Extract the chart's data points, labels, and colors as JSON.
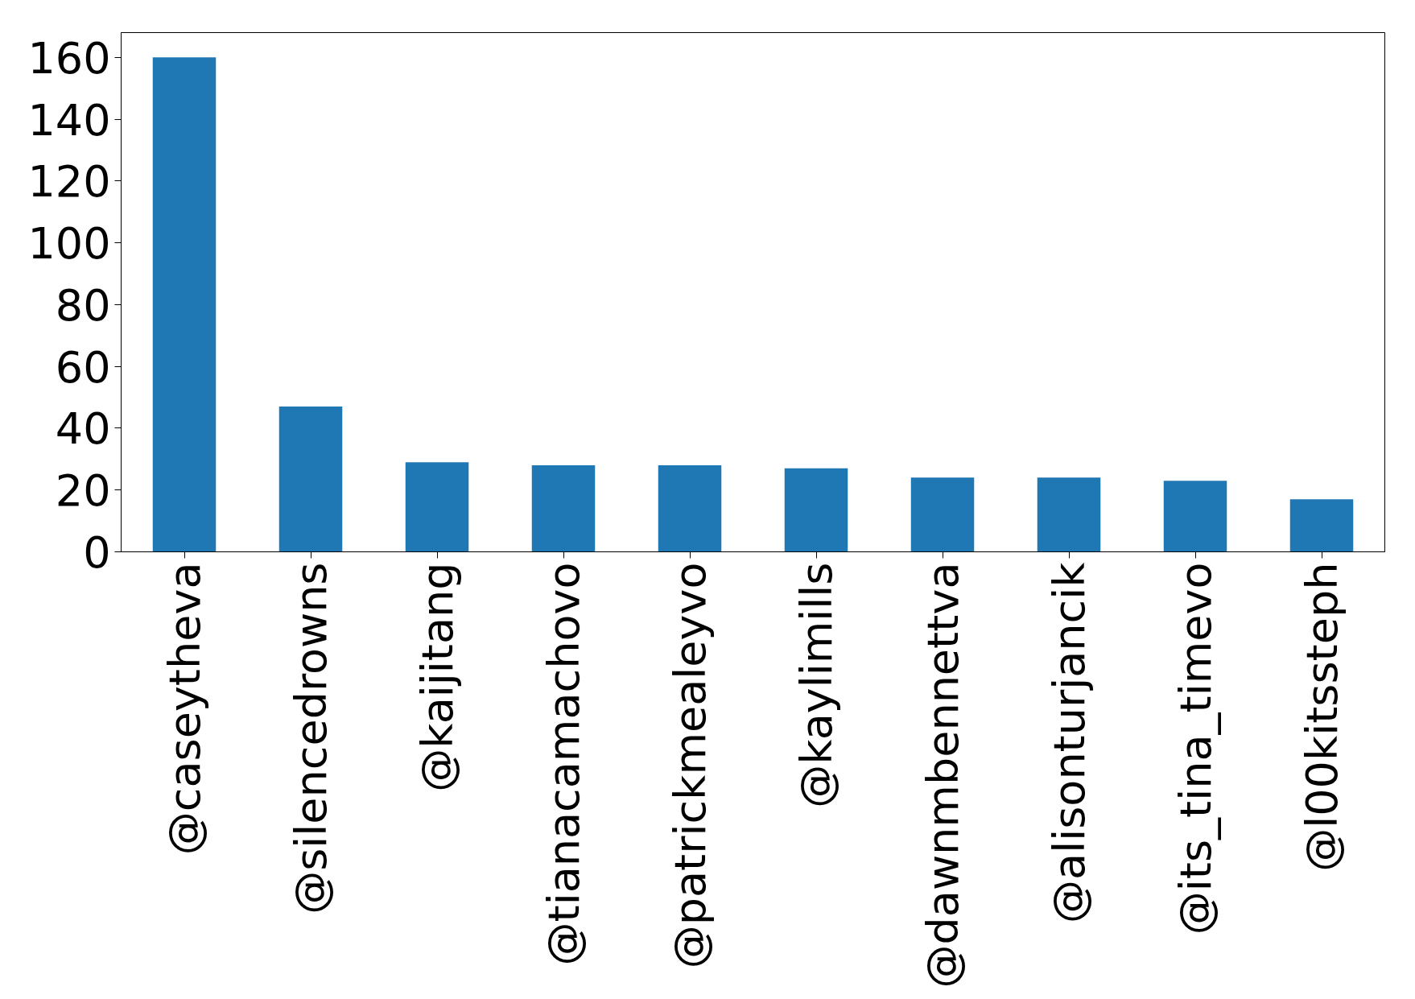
{
  "chart_data": {
    "type": "bar",
    "categories": [
      "@caseytheva",
      "@silencedrowns",
      "@kaijitang",
      "@tianacamachovo",
      "@patrickmealeyvo",
      "@kaylimills",
      "@dawnmbennettva",
      "@alisonturjancik",
      "@its_tina_timevo",
      "@l00kitssteph"
    ],
    "values": [
      160,
      47,
      29,
      28,
      28,
      27,
      24,
      24,
      23,
      17
    ],
    "color": "#1f77b4",
    "ylim": [
      0,
      168
    ],
    "yticks": [
      0,
      20,
      40,
      60,
      80,
      100,
      120,
      140,
      160
    ],
    "grid": false
  }
}
